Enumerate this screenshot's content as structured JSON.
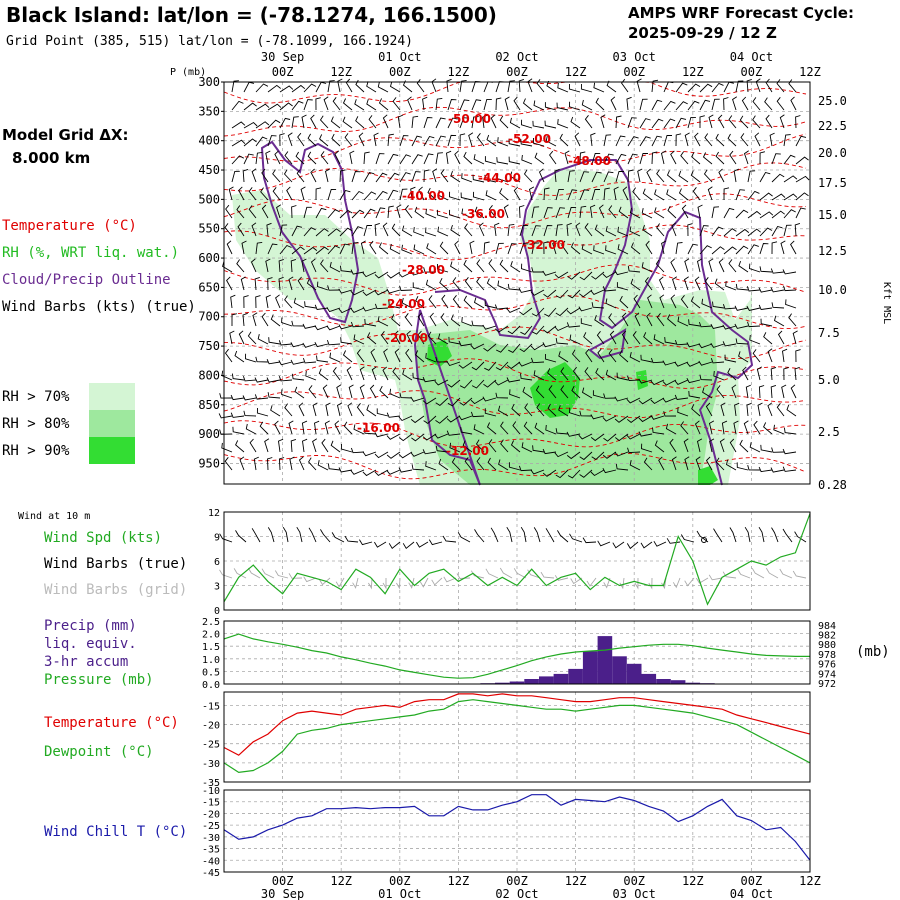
{
  "header": {
    "title": "Black Island:  lat/lon = (-78.1274, 166.1500)",
    "grid_point": "Grid Point (385, 515) lat/lon = (-78.1099, 166.1924)",
    "cycle_label": "AMPS WRF Forecast Cycle:",
    "cycle_value": "2025-09-29 / 12  Z"
  },
  "sidebar": {
    "grid_title": "Model Grid ΔX:",
    "grid_value": "8.000 km",
    "legend": [
      {
        "label": "Temperature (°C)",
        "color": "#e00000"
      },
      {
        "label": "RH (%, WRT liq. wat.)",
        "color": "#22bb22"
      },
      {
        "label": "Cloud/Precip Outline",
        "color": "#6a2c91"
      },
      {
        "label": "Wind Barbs (kts) (true)",
        "color": "#000000"
      }
    ],
    "rh_legend": [
      {
        "label": "RH > 70%",
        "color": "#d4f5d4"
      },
      {
        "label": "RH > 80%",
        "color": "#9ee89e"
      },
      {
        "label": "RH > 90%",
        "color": "#33dd33"
      }
    ]
  },
  "time_axis": {
    "top_dates": [
      "30 Sep",
      "01 Oct",
      "02 Oct",
      "03 Oct",
      "04 Oct"
    ],
    "bottom_dates": [
      "30 Sep",
      "01 Oct",
      "02 Oct",
      "03 Oct",
      "04 Oct"
    ],
    "hour_ticks": [
      "00Z",
      "12Z",
      "00Z",
      "12Z",
      "00Z",
      "12Z",
      "00Z",
      "12Z",
      "00Z",
      "12Z"
    ]
  },
  "chart_data": [
    {
      "type": "heatmap",
      "name": "cross-section",
      "ylabel_left": "P (mb)",
      "ylabel_right": "Kft MSL",
      "pressure_ticks": [
        "300",
        "350",
        "400",
        "450",
        "500",
        "550",
        "600",
        "650",
        "700",
        "750",
        "800",
        "850",
        "900",
        "950"
      ],
      "height_ticks": [
        "25.0",
        "22.5",
        "20.0",
        "17.5",
        "15.0",
        "12.5",
        "10.0",
        "7.5",
        "5.0",
        "2.5",
        "0.28"
      ],
      "isotherm_labels": [
        "-50.00",
        "-52.00",
        "-48.00",
        "-44.00",
        "-40.00",
        "-36.00",
        "-32.00",
        "-28.00",
        "-24.00",
        "-20.00",
        "-16.00",
        "-12.00"
      ],
      "ylim": [
        300,
        985
      ],
      "x_range_hours": [
        -12,
        108
      ]
    },
    {
      "type": "line",
      "name": "wind-10m",
      "corner_label": "Wind at 10 m",
      "labels": [
        {
          "text": "Wind Spd (kts)",
          "color": "#22aa22"
        },
        {
          "text": "Wind Barbs (true)",
          "color": "#000000"
        },
        {
          "text": "Wind Barbs (grid)",
          "color": "#bbbbbb"
        }
      ],
      "y_ticks": [
        "0",
        "3",
        "6",
        "9",
        "12"
      ],
      "ylim": [
        0,
        12
      ],
      "x": [
        0,
        3,
        6,
        9,
        12,
        15,
        18,
        21,
        24,
        27,
        30,
        33,
        36,
        39,
        42,
        45,
        48,
        51,
        54,
        57,
        60,
        63,
        66,
        69,
        72,
        75,
        78,
        81,
        84,
        87,
        90,
        93,
        96,
        99,
        102,
        105,
        108,
        111,
        114,
        117,
        120
      ],
      "series": [
        {
          "name": "Wind Spd (kts)",
          "color": "#22aa22",
          "values": [
            1,
            4,
            5.5,
            3.5,
            2,
            4.5,
            4,
            3.5,
            2.5,
            5,
            4,
            2,
            5,
            3,
            4.5,
            5,
            3.5,
            4.5,
            3,
            4,
            3,
            5,
            3,
            4,
            4.5,
            2.5,
            4,
            3,
            3.5,
            3,
            3,
            9,
            6,
            0.7,
            4,
            5,
            6,
            5.5,
            6.5,
            7,
            11.8
          ]
        }
      ]
    },
    {
      "type": "bar",
      "name": "precip-pressure",
      "labels": [
        {
          "text": "Precip (mm)",
          "color": "#4b1f8a"
        },
        {
          "text": "liq. equiv.",
          "color": "#4b1f8a"
        },
        {
          "text": "3-hr accum",
          "color": "#4b1f8a"
        },
        {
          "text": "Pressure (mb)",
          "color": "#22aa22"
        }
      ],
      "right_unit": "(mb)",
      "y_ticks": [
        "0.0",
        "0.5",
        "1.0",
        "1.5",
        "2.0",
        "2.5"
      ],
      "ylim": [
        0,
        2.5
      ],
      "y2_ticks": [
        "972",
        "974",
        "976",
        "978",
        "980",
        "982",
        "984"
      ],
      "y2lim": [
        972,
        985
      ],
      "x": [
        0,
        3,
        6,
        9,
        12,
        15,
        18,
        21,
        24,
        27,
        30,
        33,
        36,
        39,
        42,
        45,
        48,
        51,
        54,
        57,
        60,
        63,
        66,
        69,
        72,
        75,
        78,
        81,
        84,
        87,
        90,
        93,
        96,
        99,
        102,
        105,
        108,
        111,
        114,
        117,
        120
      ],
      "series": [
        {
          "name": "Precip (mm)",
          "color": "#4b1f8a",
          "values": [
            0,
            0,
            0,
            0,
            0,
            0,
            0,
            0,
            0,
            0,
            0,
            0,
            0,
            0,
            0,
            0,
            0,
            0,
            0.03,
            0.05,
            0.1,
            0.2,
            0.3,
            0.4,
            0.6,
            1.3,
            1.9,
            1.1,
            0.8,
            0.4,
            0.2,
            0.15,
            0.05,
            0.03,
            0,
            0,
            0,
            0,
            0,
            0,
            0
          ]
        },
        {
          "name": "Pressure (mb)",
          "color": "#22aa22",
          "values": [
            981.3,
            982.3,
            981.3,
            980.7,
            980.2,
            979.6,
            978.9,
            978.4,
            977.6,
            977,
            976.3,
            975.7,
            974.9,
            974.4,
            973.9,
            973.4,
            973.2,
            973.3,
            974,
            974.9,
            975.8,
            976.8,
            977.6,
            978.2,
            978.6,
            978.8,
            979,
            979.4,
            979.7,
            980,
            980.2,
            980.2,
            979.9,
            979.4,
            979,
            978.6,
            978.2,
            977.9,
            977.8,
            977.7,
            977.7
          ]
        }
      ]
    },
    {
      "type": "line",
      "name": "temperature-dewpoint",
      "labels": [
        {
          "text": "Temperature (°C)",
          "color": "#e00000"
        },
        {
          "text": "Dewpoint (°C)",
          "color": "#22aa22"
        }
      ],
      "y_ticks": [
        "-35",
        "-30",
        "-25",
        "-20",
        "-15"
      ],
      "ylim": [
        -35,
        -11.5
      ],
      "x": [
        0,
        3,
        6,
        9,
        12,
        15,
        18,
        21,
        24,
        27,
        30,
        33,
        36,
        39,
        42,
        45,
        48,
        51,
        54,
        57,
        60,
        63,
        66,
        69,
        72,
        75,
        78,
        81,
        84,
        87,
        90,
        93,
        96,
        99,
        102,
        105,
        108,
        111,
        114,
        117,
        120
      ],
      "series": [
        {
          "name": "Temperature (°C)",
          "color": "#e00000",
          "values": [
            -26,
            -28,
            -24.5,
            -22.5,
            -19,
            -17,
            -16.5,
            -17,
            -17.5,
            -16,
            -15.5,
            -15,
            -15.5,
            -14,
            -13.5,
            -13.5,
            -12,
            -12,
            -12.5,
            -12,
            -12.5,
            -12.5,
            -13,
            -13.5,
            -14,
            -14,
            -13.5,
            -13,
            -13,
            -13.5,
            -14,
            -14.5,
            -15,
            -15.5,
            -16,
            -17.5,
            -18.5,
            -19.5,
            -20.5,
            -21.5,
            -22.5
          ]
        },
        {
          "name": "Dewpoint (°C)",
          "color": "#22aa22",
          "values": [
            -30,
            -32.5,
            -32,
            -30,
            -27,
            -22.5,
            -21.5,
            -21,
            -20,
            -19.5,
            -19,
            -18.5,
            -18,
            -17.5,
            -16.5,
            -16,
            -14,
            -13.5,
            -14,
            -14.5,
            -15,
            -15.5,
            -16,
            -16,
            -16.5,
            -16,
            -15.5,
            -15,
            -15,
            -15.5,
            -16,
            -16.5,
            -17,
            -18,
            -19,
            -20,
            -22,
            -24,
            -26,
            -28,
            -30
          ]
        }
      ]
    },
    {
      "type": "line",
      "name": "wind-chill",
      "labels": [
        {
          "text": "Wind Chill T (°C)",
          "color": "#1a1aaa"
        }
      ],
      "y_ticks": [
        "-45",
        "-40",
        "-35",
        "-30",
        "-25",
        "-20",
        "-15",
        "-10"
      ],
      "ylim": [
        -45,
        -10
      ],
      "x": [
        0,
        3,
        6,
        9,
        12,
        15,
        18,
        21,
        24,
        27,
        30,
        33,
        36,
        39,
        42,
        45,
        48,
        51,
        54,
        57,
        60,
        63,
        66,
        69,
        72,
        75,
        78,
        81,
        84,
        87,
        90,
        93,
        96,
        99,
        102,
        105,
        108,
        111,
        114,
        117,
        120
      ],
      "series": [
        {
          "name": "Wind Chill T (°C)",
          "color": "#1a1aaa",
          "values": [
            -27,
            -31,
            -30,
            -27,
            -25,
            -22,
            -21,
            -18,
            -18,
            -17.5,
            -18,
            -17.5,
            -17.5,
            -17,
            -21,
            -21,
            -17,
            -18.5,
            -18.5,
            -16.5,
            -15,
            -12,
            -12,
            -16.5,
            -14,
            -14.5,
            -15,
            -13,
            -14.5,
            -17,
            -19,
            -23.5,
            -21,
            -17,
            -14,
            -21,
            -23,
            -27,
            -26,
            -32,
            -40
          ]
        }
      ]
    }
  ]
}
